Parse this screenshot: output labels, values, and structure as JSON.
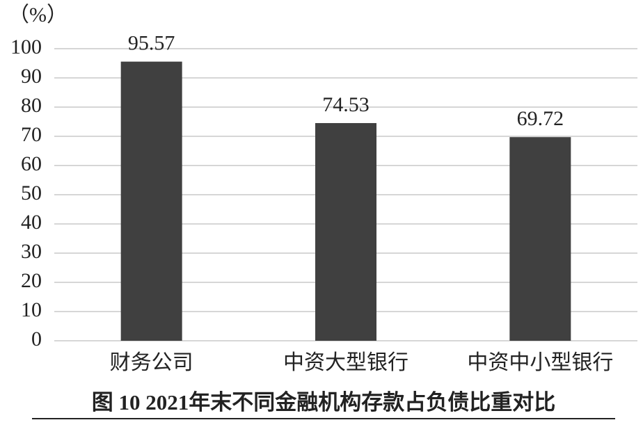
{
  "chart_data": {
    "type": "bar",
    "title": "图 10  2021年末不同金融机构存款占负债比重对比",
    "y_label": "（%）",
    "categories": [
      "财务公司",
      "中资大型银行",
      "中资中小型银行"
    ],
    "values": [
      95.57,
      74.53,
      69.72
    ],
    "color": "#404040",
    "ylim": [
      0,
      100
    ],
    "yticks": [
      0,
      10,
      20,
      30,
      40,
      50,
      60,
      70,
      80,
      90,
      100
    ],
    "grid": true
  }
}
